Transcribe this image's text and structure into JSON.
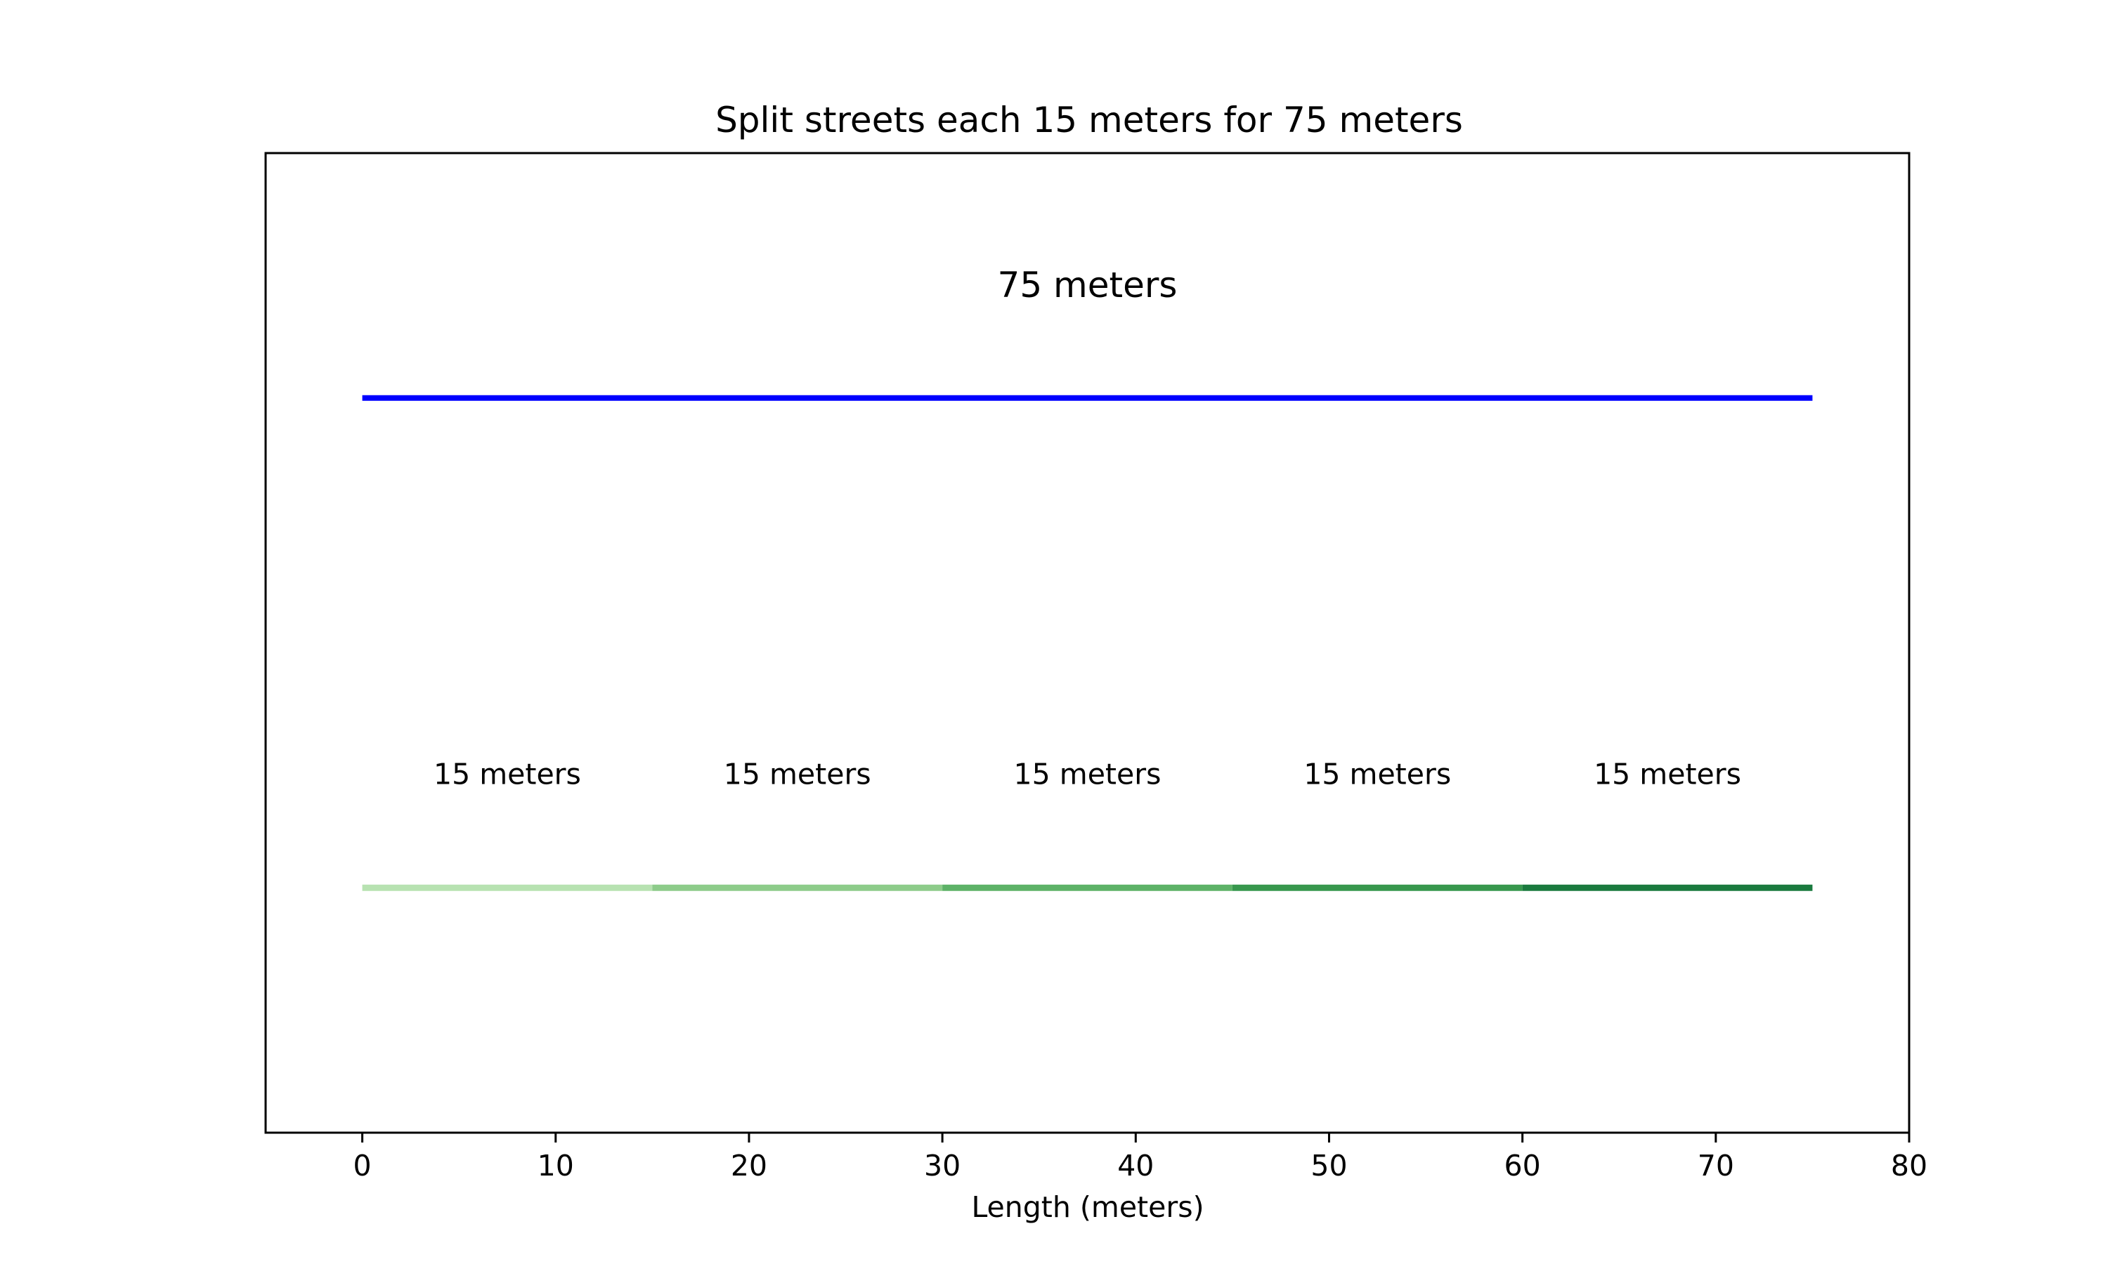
{
  "chart_data": {
    "type": "line",
    "title": "Split streets each 15 meters for 75 meters",
    "xlabel": "Length (meters)",
    "ylabel": "",
    "xlim": [
      -5,
      80
    ],
    "ylim": [
      0,
      1
    ],
    "x_ticks": [
      0,
      10,
      20,
      30,
      40,
      50,
      60,
      70,
      80
    ],
    "x_tick_labels": [
      "0",
      "10",
      "20",
      "30",
      "40",
      "50",
      "60",
      "70",
      "80"
    ],
    "y_ticks_shown": false,
    "grid": false,
    "legend": "none",
    "series": [
      {
        "label": "75 meters",
        "segments": [
          {
            "x": [
              0,
              75
            ],
            "y": [
              0.75,
              0.75
            ],
            "color": "#0000ff"
          }
        ]
      },
      {
        "segments": [
          {
            "x": [
              0,
              15
            ],
            "y": [
              0.25,
              0.25
            ],
            "color": "#b7e2b1",
            "label": "15 meters"
          },
          {
            "x": [
              15,
              30
            ],
            "y": [
              0.25,
              0.25
            ],
            "color": "#8dcc8a",
            "label": "15 meters"
          },
          {
            "x": [
              30,
              45
            ],
            "y": [
              0.25,
              0.25
            ],
            "color": "#5db267",
            "label": "15 meters"
          },
          {
            "x": [
              45,
              60
            ],
            "y": [
              0.25,
              0.25
            ],
            "color": "#37974d",
            "label": "15 meters"
          },
          {
            "x": [
              60,
              75
            ],
            "y": [
              0.25,
              0.25
            ],
            "color": "#1a7a3e",
            "label": "15 meters"
          }
        ]
      }
    ]
  }
}
